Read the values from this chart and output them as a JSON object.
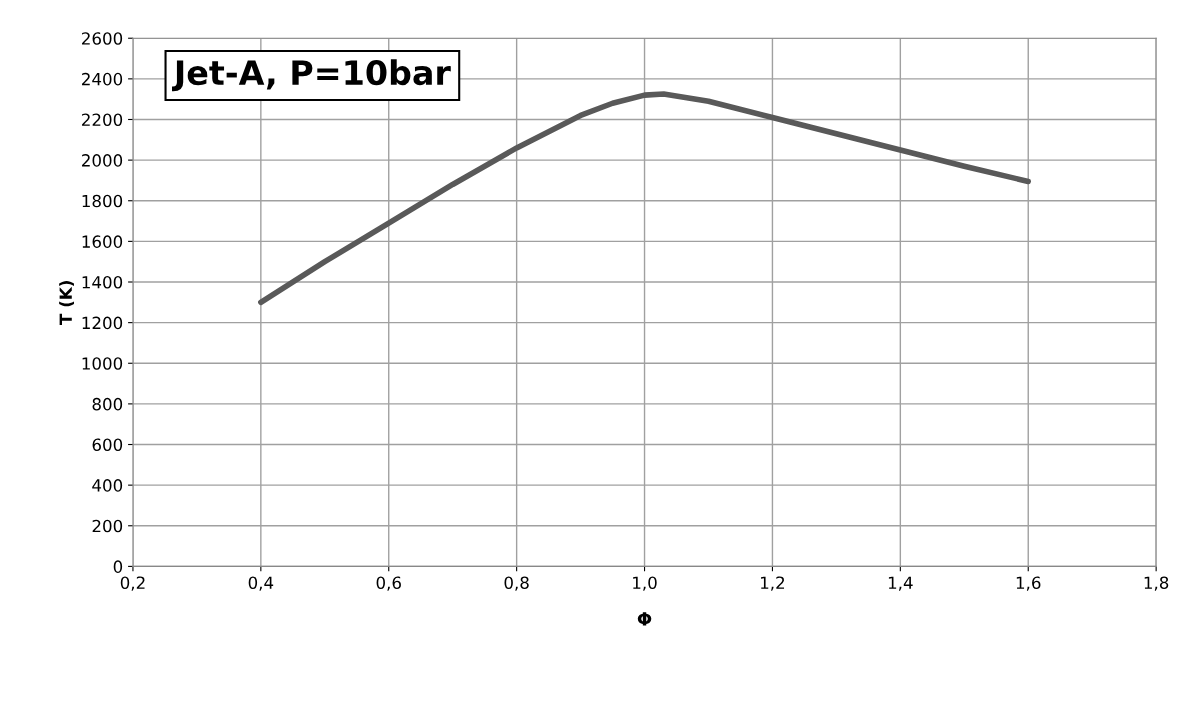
{
  "chart_data": {
    "type": "line",
    "xlabel": "Φ",
    "ylabel": "T (K)",
    "annotations": [
      "Jet-A, P=10bar"
    ],
    "x": [
      0.4,
      0.5,
      0.6,
      0.7,
      0.8,
      0.9,
      0.95,
      1.0,
      1.03,
      1.1,
      1.2,
      1.3,
      1.4,
      1.5,
      1.6
    ],
    "series": [
      {
        "color": "#595959",
        "values": [
          1300,
          1500,
          1690,
          1880,
          2060,
          2220,
          2280,
          2320,
          2325,
          2290,
          2210,
          2130,
          2050,
          1970,
          1895
        ]
      }
    ],
    "xlim": [
      0.2,
      1.8
    ],
    "xticks": [
      {
        "value": 0.2,
        "label": "0,2"
      },
      {
        "value": 0.4,
        "label": "0,4"
      },
      {
        "value": 0.6,
        "label": "0,6"
      },
      {
        "value": 0.8,
        "label": "0,8"
      },
      {
        "value": 1.0,
        "label": "1,0"
      },
      {
        "value": 1.2,
        "label": "1,2"
      },
      {
        "value": 1.4,
        "label": "1,4"
      },
      {
        "value": 1.6,
        "label": "1,6"
      },
      {
        "value": 1.8,
        "label": "1,8"
      }
    ],
    "ylim": [
      0,
      2600
    ],
    "yticks": [
      0,
      200,
      400,
      600,
      800,
      1000,
      1200,
      1400,
      1600,
      1800,
      2000,
      2200,
      2400,
      2600
    ],
    "grid": true,
    "marker": "none",
    "line_style": "solid",
    "legend": false
  }
}
